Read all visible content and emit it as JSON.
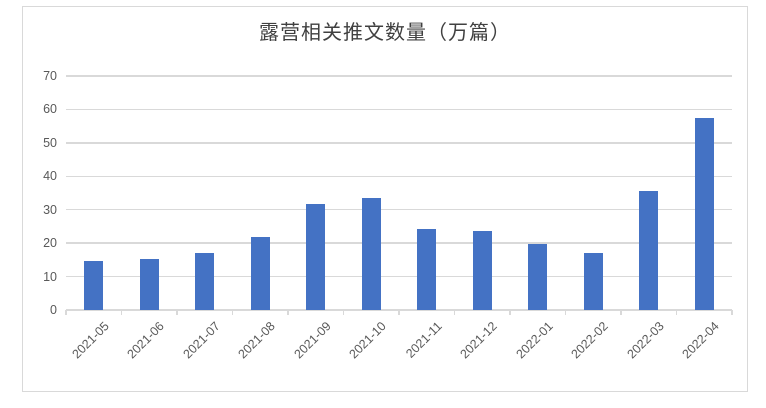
{
  "chart_data": {
    "type": "bar",
    "title": "露营相关推文数量（万篇）",
    "categories": [
      "2021-05",
      "2021-06",
      "2021-07",
      "2021-08",
      "2021-09",
      "2021-10",
      "2021-11",
      "2021-12",
      "2022-01",
      "2022-02",
      "2022-03",
      "2022-04"
    ],
    "values": [
      14.7,
      15.2,
      17,
      21.8,
      31.8,
      33.6,
      24.1,
      23.5,
      19.7,
      17,
      35.5,
      57.5
    ],
    "xlabel": "",
    "ylabel": "",
    "ylim": [
      0,
      70
    ],
    "yticks": [
      0,
      10,
      20,
      30,
      40,
      50,
      60,
      70
    ],
    "grid": true,
    "legend": "none",
    "colors": {
      "bar": "#4472C4",
      "gridline": "#D9D9D9",
      "frame_border": "#D9D9D9",
      "title_text": "#404040",
      "axis_label_text": "#595959"
    }
  }
}
